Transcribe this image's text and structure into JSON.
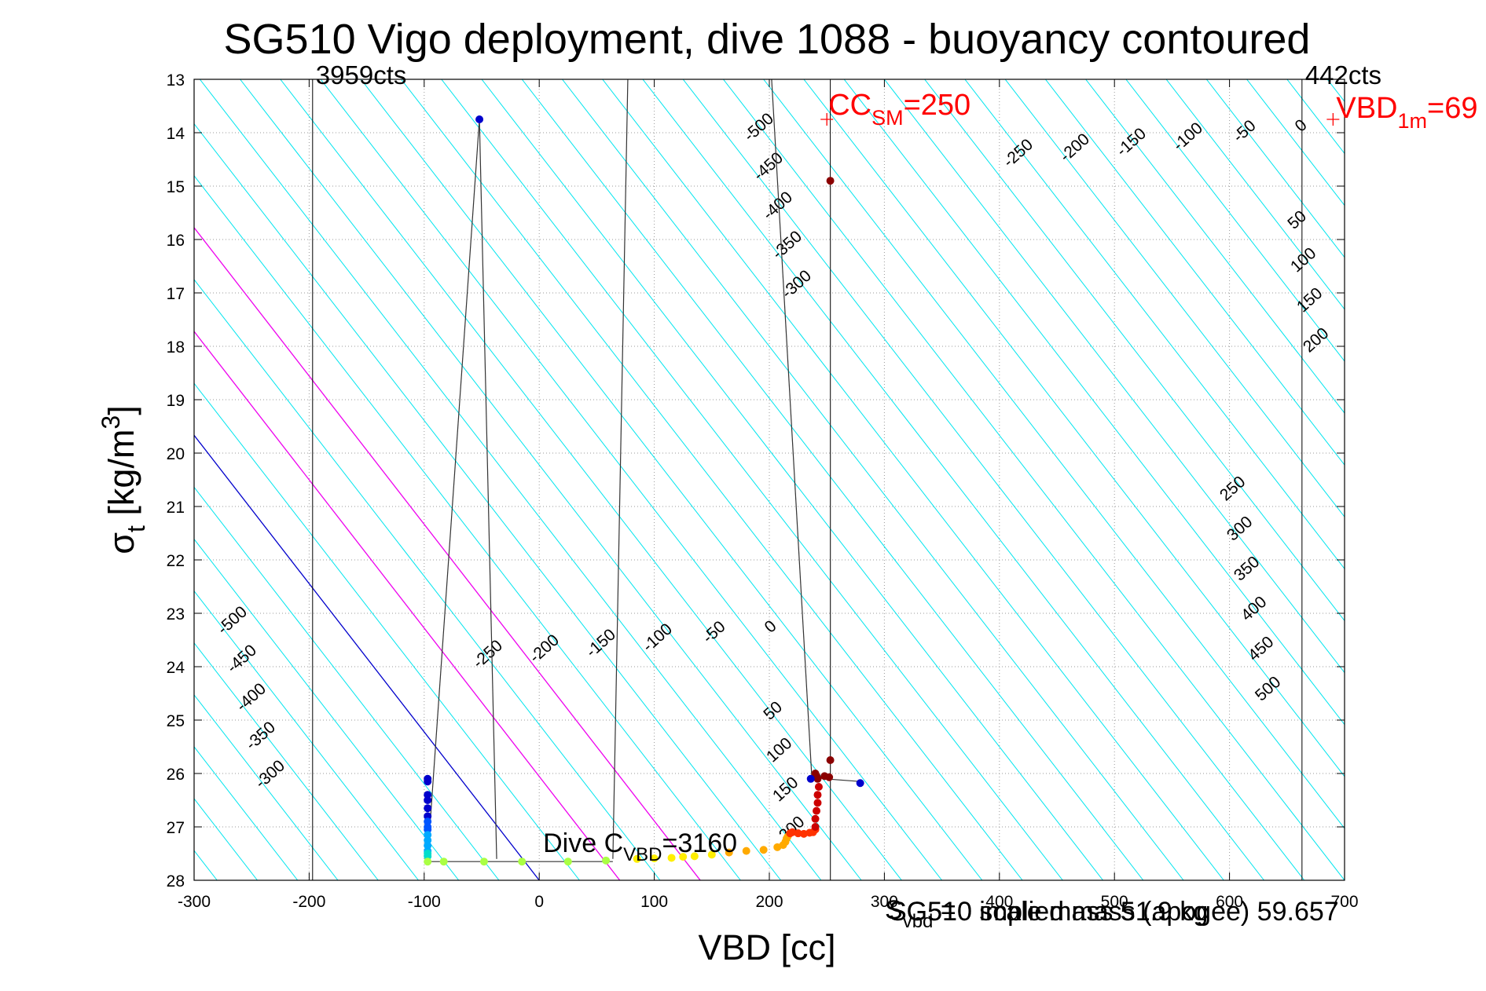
{
  "chart_data": {
    "type": "scatter",
    "title": "SG510 Vigo deployment, dive 1088 - buoyancy contoured",
    "xlabel": "VBD [cc]",
    "ylabel": {
      "main": "σ",
      "sub": "t",
      "rest": " [kg/m",
      "sup": "3",
      "close": "]"
    },
    "xlim": [
      -300,
      700
    ],
    "ylim": [
      13,
      28
    ],
    "y_reversed": true,
    "grid": true,
    "x_ticks": [
      -300,
      -200,
      -100,
      0,
      100,
      200,
      300,
      400,
      500,
      600,
      700
    ],
    "y_ticks": [
      13,
      14,
      15,
      16,
      17,
      18,
      19,
      20,
      21,
      22,
      23,
      24,
      25,
      26,
      27,
      28
    ],
    "x_tick_labels": [
      "-300",
      "-200",
      "-100",
      "0",
      "100",
      "200",
      "300",
      "400",
      "500",
      "600",
      "700"
    ],
    "y_tick_labels": [
      "13",
      "14",
      "15",
      "16",
      "17",
      "18",
      "19",
      "20",
      "21",
      "22",
      "23",
      "24",
      "25",
      "26",
      "27",
      "28"
    ],
    "colors": {
      "cyan": "#00e5ee",
      "blue": "#0000cc",
      "magenta": "#ee00ee",
      "red": "#ff0000",
      "grey": "#555555"
    },
    "buoyancy_contours": {
      "slope_vbd_per_sigma": 36.0,
      "zero_line_vbd_at_28": 0,
      "levels_cyan": [
        -500,
        -450,
        -400,
        -350,
        -300,
        -250,
        -200,
        -150,
        -100,
        -50,
        50,
        100,
        150,
        200,
        250,
        300,
        350,
        400,
        450,
        500
      ],
      "levels_blue": [
        0
      ],
      "levels_magenta": [
        100,
        200
      ],
      "spacing_vbd": 35,
      "labels_lower": [
        "-500",
        "-450",
        "-400",
        "-350",
        "-300",
        "-250",
        "-200",
        "-150",
        "-100",
        "-50",
        "0",
        "50",
        "100",
        "150",
        "200"
      ],
      "labels_upper_left": [
        "-500",
        "-450",
        "-400",
        "-350",
        "-300"
      ],
      "labels_upper_right": [
        "-250",
        "-200",
        "-150",
        "-100",
        "-50",
        "0",
        "50",
        "100",
        "150",
        "200"
      ],
      "labels_lower_right": [
        "250",
        "300",
        "350",
        "400",
        "450",
        "500"
      ]
    },
    "vertical_lines": [
      {
        "x": -197,
        "label": "3959cts"
      },
      {
        "x": 253,
        "label": ""
      },
      {
        "x": 663,
        "label": "442cts"
      }
    ],
    "annotations": {
      "cc_sm": {
        "base": "CC",
        "sub": "SM",
        "rest": "=250",
        "x": 250,
        "y": 13.75
      },
      "vbd_1m": {
        "base": "VBD",
        "sub": "1m",
        "rest": "=69",
        "x": 690,
        "y": 13.75
      },
      "dive_c": {
        "base": "Dive C",
        "sub": "VBD",
        "rest": "=3160",
        "x": 2,
        "y": 27.5
      },
      "overlap_text": {
        "a": "SG510 implied mass (apogee) 59.657",
        "b": "SG510 scale mass 51.9 kg",
        "c_base": "S",
        "c_sub": "vbd",
        "c_rest": " = "
      }
    },
    "envelope_lines": [
      {
        "points": [
          [
            -52,
            13.75
          ],
          [
            -97,
            27.6
          ]
        ]
      },
      {
        "points": [
          [
            -52,
            13.75
          ],
          [
            -37,
            27.6
          ]
        ]
      },
      {
        "points": [
          [
            77,
            13
          ],
          [
            64,
            27.6
          ]
        ]
      },
      {
        "points": [
          [
            202,
            13
          ],
          [
            237,
            26.1
          ]
        ]
      },
      {
        "points": [
          [
            -97,
            27.65
          ],
          [
            64,
            27.65
          ]
        ]
      },
      {
        "points": [
          [
            253,
            14.9
          ],
          [
            253,
            28
          ]
        ]
      },
      {
        "points": [
          [
            248,
            26.1
          ],
          [
            279,
            26.15
          ]
        ]
      }
    ],
    "series": [
      {
        "color": "#0000cc",
        "x": [
          -52,
          -97,
          -97,
          -97,
          -97,
          -97,
          -97
        ],
        "y": [
          13.75,
          26.1,
          26.15,
          26.4,
          26.5,
          26.65,
          26.8
        ]
      },
      {
        "color": "#0055ff",
        "x": [
          -97,
          -97,
          -97
        ],
        "y": [
          26.9,
          27.0,
          27.05
        ]
      },
      {
        "color": "#00aaff",
        "x": [
          -97,
          -97,
          -97,
          -97
        ],
        "y": [
          27.15,
          27.25,
          27.35,
          27.45
        ]
      },
      {
        "color": "#00ddcc",
        "x": [
          -97,
          -97
        ],
        "y": [
          27.5,
          27.55
        ]
      },
      {
        "color": "#aaff44",
        "x": [
          -97,
          -83,
          -48,
          -15,
          25,
          58
        ],
        "y": [
          27.65,
          27.65,
          27.65,
          27.65,
          27.65,
          27.63
        ]
      },
      {
        "color": "#ffee00",
        "x": [
          85,
          100,
          115,
          125,
          135,
          150
        ],
        "y": [
          27.6,
          27.59,
          27.58,
          27.56,
          27.55,
          27.52
        ]
      },
      {
        "color": "#ffaa00",
        "x": [
          165,
          180,
          195,
          207,
          212,
          214,
          215,
          216
        ],
        "y": [
          27.48,
          27.45,
          27.43,
          27.38,
          27.34,
          27.28,
          27.22,
          27.18
        ]
      },
      {
        "color": "#ff3300",
        "x": [
          218,
          220,
          225,
          230,
          235,
          238,
          240
        ],
        "y": [
          27.12,
          27.1,
          27.12,
          27.13,
          27.11,
          27.1,
          27.05
        ]
      },
      {
        "color": "#cc0000",
        "x": [
          240,
          240,
          241,
          242,
          242,
          243
        ],
        "y": [
          27.0,
          26.85,
          26.7,
          26.55,
          26.4,
          26.25
        ]
      },
      {
        "color": "#8b0000",
        "x": [
          253,
          240,
          241,
          242,
          248,
          252,
          253
        ],
        "y": [
          14.9,
          26.0,
          26.05,
          26.1,
          26.05,
          26.07,
          25.75
        ]
      },
      {
        "color": "#0000cc",
        "x": [
          236,
          279
        ],
        "y": [
          26.1,
          26.18
        ]
      }
    ]
  }
}
